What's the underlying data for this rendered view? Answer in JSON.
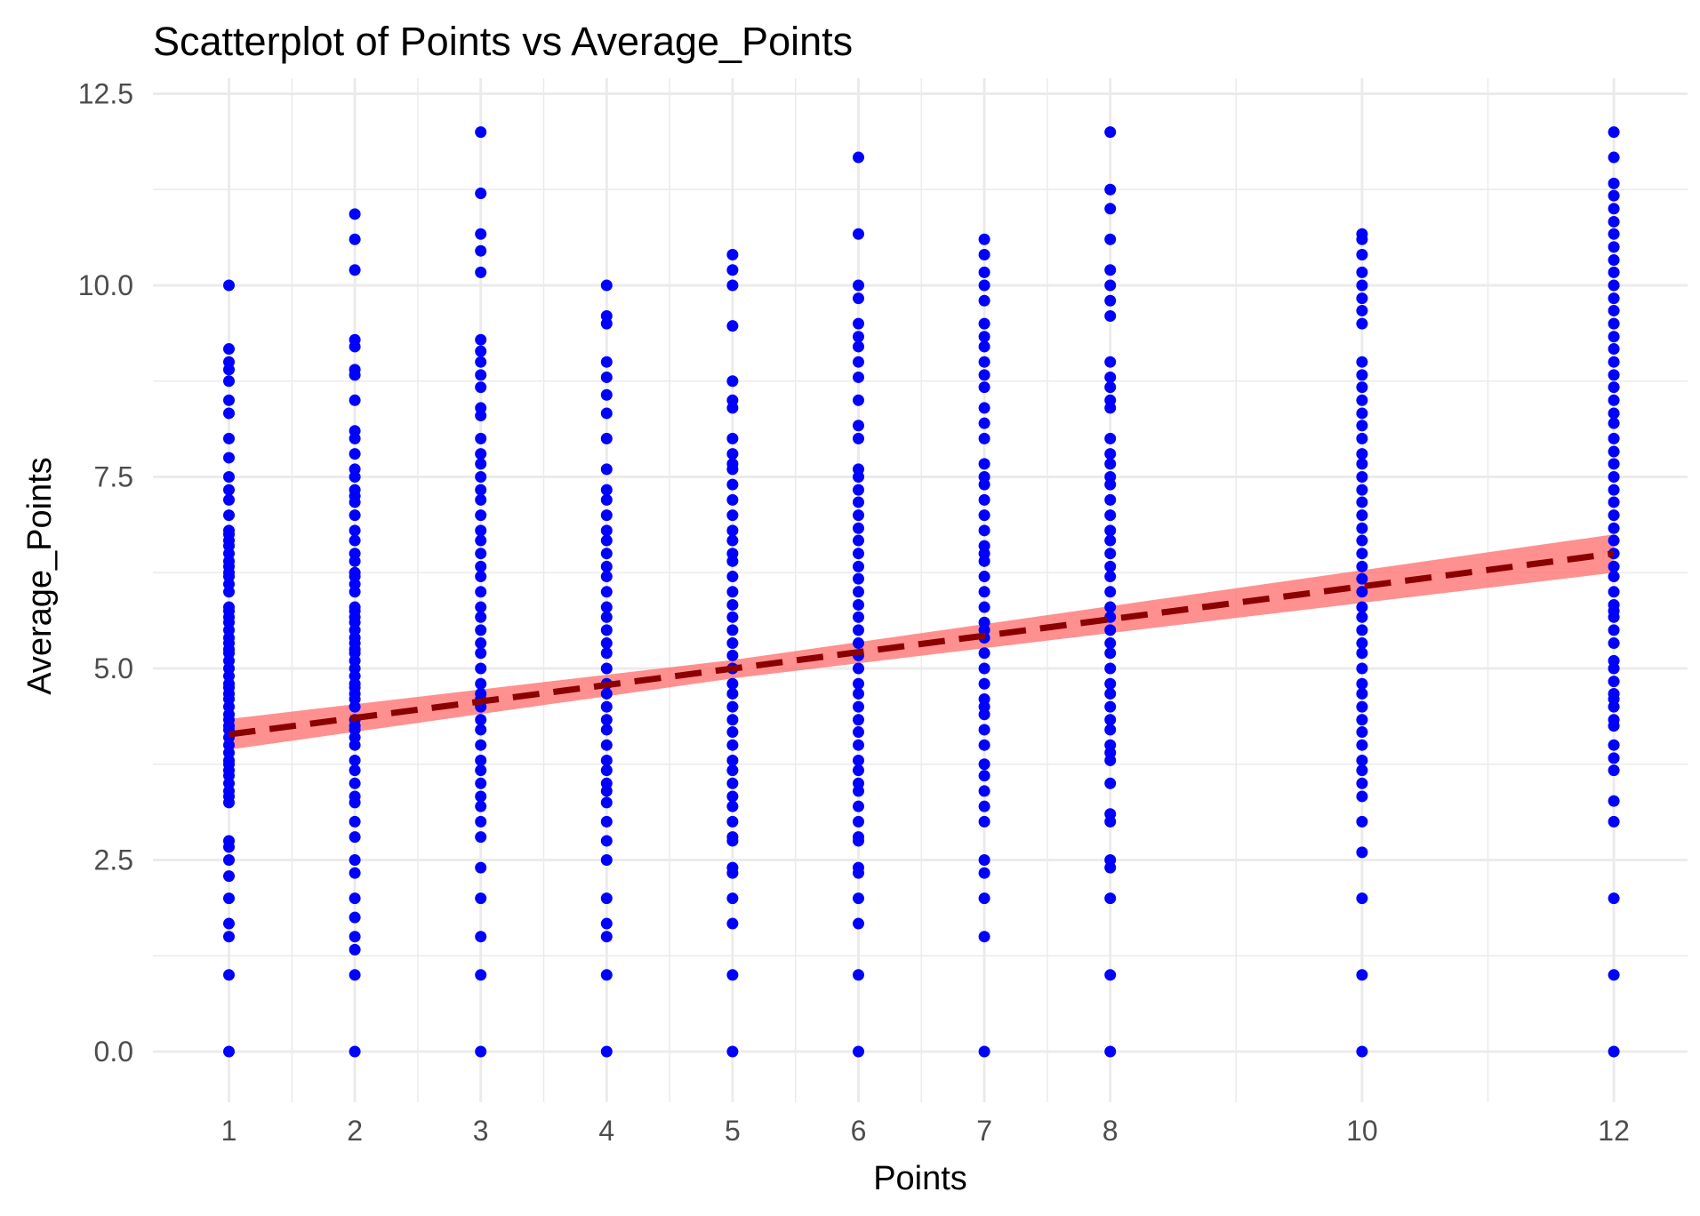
{
  "chart_data": {
    "type": "scatter",
    "title": "Scatterplot of Points vs  Average_Points",
    "xlabel": "Points",
    "ylabel": "Average_Points",
    "xlim": [
      0.4,
      12.6
    ],
    "ylim": [
      -0.6,
      12.55
    ],
    "x_ticks": [
      1,
      2,
      3,
      4,
      5,
      6,
      7,
      8,
      10,
      12
    ],
    "x_tick_labels": [
      "1",
      "2",
      "3",
      "4",
      "5",
      "6",
      "7",
      "8",
      "10",
      "12"
    ],
    "x_minor_gridlines": [
      1.5,
      2.5,
      3.5,
      4.5,
      5.5,
      6.5,
      7.5,
      9,
      11
    ],
    "y_ticks": [
      0,
      2.5,
      5,
      7.5,
      10,
      12.5
    ],
    "y_tick_labels": [
      "0.0",
      "2.5",
      "5.0",
      "7.5",
      "10.0",
      "12.5"
    ],
    "y_minor_gridlines": [
      1.25,
      3.75,
      6.25,
      8.75,
      11.25
    ],
    "grid": true,
    "legend": "none",
    "colors": {
      "points": "#0000ff",
      "trend_line": "#8b0000",
      "confidence_band": "#ff6b6b",
      "grid": "#ebebeb",
      "text": "#000000",
      "tick_text": "#4d4d4d"
    },
    "series": [
      {
        "type": "points",
        "points": [
          {
            "x": 1,
            "ys": [
              0,
              1,
              1.5,
              1.67,
              2,
              2.29,
              2.5,
              2.67,
              2.75,
              3.25,
              3.33,
              3.4,
              3.5,
              3.6,
              3.67,
              3.75,
              3.8,
              3.9,
              4,
              4.1,
              4.2,
              4.25,
              4.33,
              4.4,
              4.5,
              4.6,
              4.67,
              4.75,
              4.8,
              4.9,
              5,
              5.1,
              5.2,
              5.25,
              5.33,
              5.4,
              5.5,
              5.6,
              5.67,
              5.75,
              5.8,
              6,
              6.1,
              6.2,
              6.25,
              6.33,
              6.4,
              6.5,
              6.6,
              6.67,
              6.75,
              6.8,
              7,
              7.2,
              7.33,
              7.5,
              7.75,
              8,
              8.33,
              8.5,
              8.75,
              8.9,
              9,
              9.17,
              10
            ]
          },
          {
            "x": 2,
            "ys": [
              0,
              1,
              1.33,
              1.5,
              1.75,
              2,
              2.33,
              2.5,
              2.8,
              3,
              3.25,
              3.33,
              3.5,
              3.67,
              3.8,
              4,
              4.1,
              4.2,
              4.25,
              4.33,
              4.5,
              4.6,
              4.67,
              4.75,
              4.8,
              4.9,
              5,
              5.1,
              5.2,
              5.25,
              5.33,
              5.4,
              5.5,
              5.6,
              5.67,
              5.75,
              5.8,
              6,
              6.1,
              6.2,
              6.25,
              6.4,
              6.5,
              6.67,
              6.8,
              7,
              7.17,
              7.25,
              7.33,
              7.5,
              7.6,
              7.8,
              8,
              8.1,
              8.5,
              8.83,
              8.9,
              9.2,
              9.29,
              10.2,
              10.6,
              10.93
            ]
          },
          {
            "x": 3,
            "ys": [
              0,
              1,
              1.5,
              2,
              2.4,
              2.8,
              3,
              3.2,
              3.33,
              3.5,
              3.67,
              3.8,
              4,
              4.2,
              4.33,
              4.5,
              4.6,
              4.67,
              4.8,
              5,
              5.2,
              5.33,
              5.5,
              5.67,
              5.8,
              6,
              6.2,
              6.33,
              6.5,
              6.67,
              6.8,
              7,
              7.2,
              7.33,
              7.5,
              7.67,
              7.8,
              8,
              8.3,
              8.4,
              8.67,
              8.83,
              9,
              9.14,
              9.29,
              10.17,
              10.45,
              10.67,
              11.2,
              12
            ]
          },
          {
            "x": 4,
            "ys": [
              0,
              1,
              1.5,
              1.67,
              2,
              2.5,
              2.75,
              3,
              3.25,
              3.4,
              3.5,
              3.67,
              3.8,
              4,
              4.2,
              4.33,
              4.5,
              4.67,
              4.8,
              5,
              5.2,
              5.33,
              5.5,
              5.67,
              5.8,
              6,
              6.2,
              6.33,
              6.5,
              6.67,
              6.8,
              7,
              7.2,
              7.33,
              7.6,
              8,
              8.33,
              8.57,
              8.8,
              9,
              9.5,
              9.6,
              10
            ]
          },
          {
            "x": 5,
            "ys": [
              0,
              1,
              1.67,
              2,
              2.33,
              2.4,
              2.75,
              2.8,
              3,
              3.2,
              3.33,
              3.5,
              3.67,
              3.8,
              4,
              4.17,
              4.33,
              4.5,
              4.67,
              4.8,
              5,
              5.17,
              5.33,
              5.5,
              5.67,
              5.83,
              6,
              6.2,
              6.4,
              6.5,
              6.67,
              6.8,
              7,
              7.2,
              7.4,
              7.6,
              7.67,
              7.8,
              8,
              8.4,
              8.5,
              8.75,
              9.47,
              10,
              10.2,
              10.4
            ]
          },
          {
            "x": 6,
            "ys": [
              0,
              1,
              1.67,
              2,
              2.33,
              2.4,
              2.75,
              2.8,
              3,
              3.2,
              3.4,
              3.5,
              3.67,
              3.8,
              4,
              4.17,
              4.33,
              4.5,
              4.67,
              4.8,
              5,
              5.17,
              5.33,
              5.5,
              5.67,
              5.83,
              6,
              6.17,
              6.33,
              6.5,
              6.67,
              6.83,
              7,
              7.17,
              7.33,
              7.5,
              7.6,
              8,
              8.17,
              8.5,
              8.8,
              9,
              9.2,
              9.33,
              9.5,
              9.83,
              10,
              10.67,
              11.67
            ]
          },
          {
            "x": 7,
            "ys": [
              0,
              1.5,
              2,
              2.33,
              2.5,
              3,
              3.2,
              3.4,
              3.6,
              3.75,
              4,
              4.2,
              4.4,
              4.5,
              4.6,
              4.8,
              5,
              5.2,
              5.4,
              5.5,
              5.6,
              5.8,
              6,
              6.2,
              6.4,
              6.5,
              6.6,
              6.8,
              7,
              7.2,
              7.4,
              7.5,
              7.67,
              8,
              8.2,
              8.4,
              8.67,
              8.83,
              9,
              9.2,
              9.33,
              9.5,
              9.8,
              10,
              10.17,
              10.4,
              10.6
            ]
          },
          {
            "x": 8,
            "ys": [
              0,
              1,
              2,
              2.4,
              2.5,
              3,
              3.1,
              3.5,
              3.8,
              3.9,
              4,
              4.2,
              4.33,
              4.5,
              4.67,
              4.8,
              5,
              5.2,
              5.33,
              5.5,
              5.67,
              5.8,
              6,
              6.2,
              6.33,
              6.5,
              6.67,
              6.8,
              7,
              7.2,
              7.4,
              7.5,
              7.67,
              7.8,
              8,
              8.4,
              8.5,
              8.67,
              8.8,
              9,
              9.6,
              9.8,
              10,
              10.2,
              10.6,
              11,
              11.25,
              12
            ]
          },
          {
            "x": 10,
            "ys": [
              0,
              1,
              2,
              2.6,
              3,
              3.33,
              3.5,
              3.67,
              3.8,
              4,
              4.17,
              4.33,
              4.5,
              4.67,
              4.8,
              5,
              5.2,
              5.33,
              5.5,
              5.67,
              5.8,
              6,
              6.17,
              6.33,
              6.5,
              6.67,
              6.83,
              7,
              7.17,
              7.33,
              7.5,
              7.67,
              7.8,
              8,
              8.17,
              8.33,
              8.5,
              8.67,
              8.83,
              9,
              9.5,
              9.67,
              9.83,
              10,
              10.17,
              10.4,
              10.6,
              10.67
            ]
          },
          {
            "x": 12,
            "ys": [
              0,
              1,
              2,
              3,
              3.27,
              3.67,
              3.83,
              4,
              4.25,
              4.33,
              4.5,
              4.6,
              4.67,
              4.83,
              5,
              5.1,
              5.33,
              5.5,
              5.67,
              5.75,
              5.83,
              6,
              6.2,
              6.33,
              6.5,
              6.67,
              6.83,
              7,
              7.17,
              7.33,
              7.5,
              7.67,
              7.83,
              8,
              8.2,
              8.33,
              8.5,
              8.67,
              8.83,
              9,
              9.17,
              9.33,
              9.5,
              9.67,
              9.83,
              10,
              10.17,
              10.33,
              10.5,
              10.67,
              10.83,
              11,
              11.17,
              11.33,
              11.67,
              12
            ]
          }
        ]
      },
      {
        "type": "trend_line",
        "style": "dashed",
        "x": [
          1,
          12
        ],
        "y": [
          4.14,
          6.5
        ]
      },
      {
        "type": "confidence_band",
        "x": [
          1,
          5,
          12
        ],
        "lower": [
          3.94,
          4.87,
          6.25
        ],
        "upper": [
          4.34,
          5.11,
          6.75
        ]
      }
    ]
  }
}
